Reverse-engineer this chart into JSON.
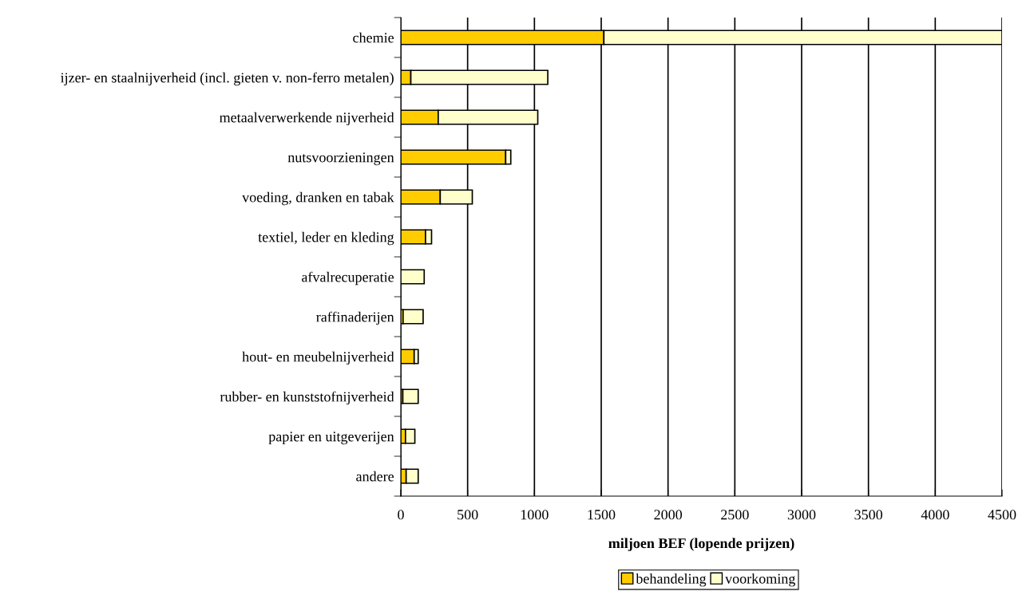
{
  "chart_data": {
    "type": "bar",
    "orientation": "horizontal",
    "stacked": true,
    "categories": [
      "chemie",
      "ijzer- en staalnijverheid (incl. gieten v. non-ferro metalen)",
      "metaalverwerkende nijverheid",
      "nutsvoorzieningen",
      "voeding, dranken en tabak",
      "textiel, leder en kleding",
      "afvalrecuperatie",
      "raffinaderijen",
      "hout- en meubelnijverheid",
      "rubber- en kunststofnijverheid",
      "papier en uitgeverijen",
      "andere"
    ],
    "series": [
      {
        "name": "behandeling",
        "color": "#ffcc00",
        "values": [
          1520,
          75,
          280,
          785,
          295,
          185,
          0,
          17,
          100,
          15,
          35,
          40
        ]
      },
      {
        "name": "voorkoming",
        "color": "#ffffcc",
        "values": [
          2980,
          1025,
          745,
          38,
          240,
          45,
          175,
          150,
          30,
          115,
          70,
          90
        ]
      }
    ],
    "xlabel": "miljoen BEF (lopende prijzen)",
    "xlim": [
      0,
      4500
    ],
    "xticks": [
      0,
      500,
      1000,
      1500,
      2000,
      2500,
      3000,
      3500,
      4000,
      4500
    ],
    "grid": "x",
    "legend": "bottom right"
  }
}
